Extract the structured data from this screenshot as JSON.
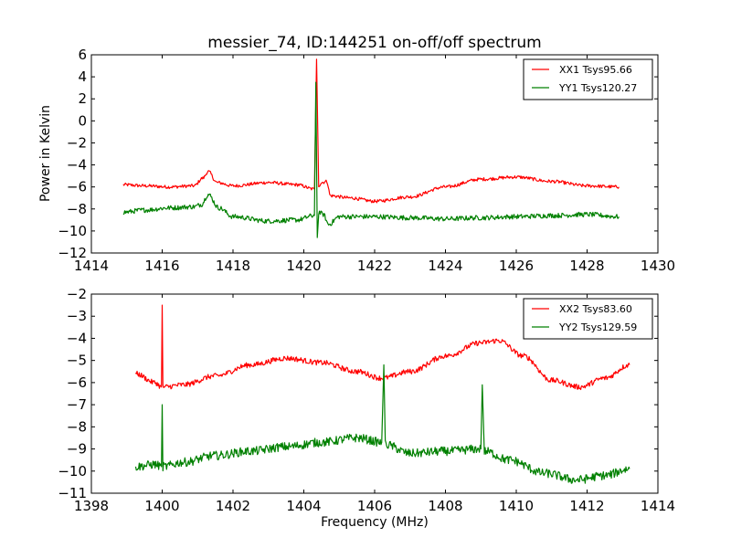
{
  "chart_data": [
    {
      "type": "line",
      "title": "messier_74, ID:144251 on-off/off spectrum",
      "xlabel": "",
      "ylabel": "Power in Kelvin",
      "xlim": [
        1414,
        1430
      ],
      "ylim": [
        -12,
        6
      ],
      "xticks": [
        "1414",
        "1416",
        "1418",
        "1420",
        "1422",
        "1424",
        "1426",
        "1428",
        "1430"
      ],
      "yticks": [
        "−12",
        "−10",
        "−8",
        "−6",
        "−4",
        "−2",
        "0",
        "2",
        "4",
        "6"
      ],
      "legend_position": "top-right",
      "series": [
        {
          "name": "XX1 Tsys95.66",
          "color": "#ff0000",
          "x": [
            1414.9,
            1415.5,
            1416.2,
            1416.9,
            1417.15,
            1417.3,
            1417.55,
            1418.0,
            1419.0,
            1419.8,
            1420.3,
            1420.36,
            1420.42,
            1420.5,
            1420.65,
            1420.75,
            1421.3,
            1422.0,
            1423.0,
            1424.0,
            1425.0,
            1426.0,
            1427.0,
            1428.0,
            1428.9
          ],
          "y": [
            -5.8,
            -5.9,
            -6.0,
            -5.9,
            -5.2,
            -4.6,
            -5.6,
            -5.9,
            -5.6,
            -5.8,
            -6.2,
            5.6,
            -5.9,
            -5.6,
            -5.5,
            -6.8,
            -7.0,
            -7.3,
            -6.9,
            -6.0,
            -5.3,
            -5.1,
            -5.5,
            -5.9,
            -6.0
          ],
          "noise": 0.15
        },
        {
          "name": "YY1 Tsys120.27",
          "color": "#008000",
          "x": [
            1414.9,
            1415.5,
            1416.2,
            1416.9,
            1417.1,
            1417.3,
            1417.6,
            1418.0,
            1419.0,
            1419.8,
            1420.3,
            1420.34,
            1420.38,
            1420.42,
            1420.55,
            1420.7,
            1421.0,
            1422.0,
            1423.0,
            1424.0,
            1425.0,
            1426.0,
            1427.0,
            1428.0,
            1428.9
          ],
          "y": [
            -8.3,
            -8.1,
            -7.9,
            -7.8,
            -7.6,
            -6.7,
            -7.9,
            -8.7,
            -9.1,
            -9.0,
            -8.6,
            3.5,
            -10.6,
            -8.3,
            -8.5,
            -9.4,
            -8.7,
            -8.7,
            -8.8,
            -8.9,
            -8.8,
            -8.7,
            -8.6,
            -8.5,
            -8.7
          ],
          "noise": 0.22
        }
      ]
    },
    {
      "type": "line",
      "title": "",
      "xlabel": "Frequency (MHz)",
      "ylabel": "",
      "xlim": [
        1398,
        1414
      ],
      "ylim": [
        -11,
        -2
      ],
      "xticks": [
        "1398",
        "1400",
        "1402",
        "1404",
        "1406",
        "1408",
        "1410",
        "1412",
        "1414"
      ],
      "yticks": [
        "−11",
        "−10",
        "−9",
        "−8",
        "−7",
        "−6",
        "−5",
        "−4",
        "−3",
        "−2"
      ],
      "legend_position": "top-right",
      "series": [
        {
          "name": "XX2 Tsys83.60",
          "color": "#ff0000",
          "x": [
            1399.25,
            1399.8,
            1399.98,
            1400.0,
            1400.02,
            1400.6,
            1401.5,
            1402.5,
            1403.5,
            1404.5,
            1405.5,
            1406.2,
            1407.0,
            1408.0,
            1409.0,
            1409.5,
            1410.2,
            1411.0,
            1411.8,
            1412.5,
            1413.2
          ],
          "y": [
            -5.6,
            -6.0,
            -6.2,
            -2.5,
            -6.2,
            -6.1,
            -5.7,
            -5.2,
            -4.9,
            -5.1,
            -5.5,
            -5.8,
            -5.5,
            -4.8,
            -4.2,
            -4.1,
            -4.8,
            -5.9,
            -6.2,
            -5.8,
            -5.2
          ],
          "noise": 0.12
        },
        {
          "name": "YY2 Tsys129.59",
          "color": "#008000",
          "x": [
            1399.25,
            1399.8,
            1399.98,
            1400.0,
            1400.02,
            1400.6,
            1401.5,
            1402.5,
            1403.5,
            1404.5,
            1405.5,
            1406.2,
            1406.26,
            1406.3,
            1407.0,
            1408.0,
            1409.0,
            1409.04,
            1409.1,
            1409.8,
            1410.8,
            1411.7,
            1412.5,
            1413.2
          ],
          "y": [
            -9.8,
            -9.7,
            -9.8,
            -7.0,
            -9.8,
            -9.6,
            -9.3,
            -9.1,
            -8.9,
            -8.7,
            -8.5,
            -8.7,
            -5.2,
            -8.8,
            -9.2,
            -9.1,
            -9.0,
            -6.1,
            -9.1,
            -9.5,
            -10.1,
            -10.4,
            -10.2,
            -9.9
          ],
          "noise": 0.2
        }
      ]
    }
  ]
}
